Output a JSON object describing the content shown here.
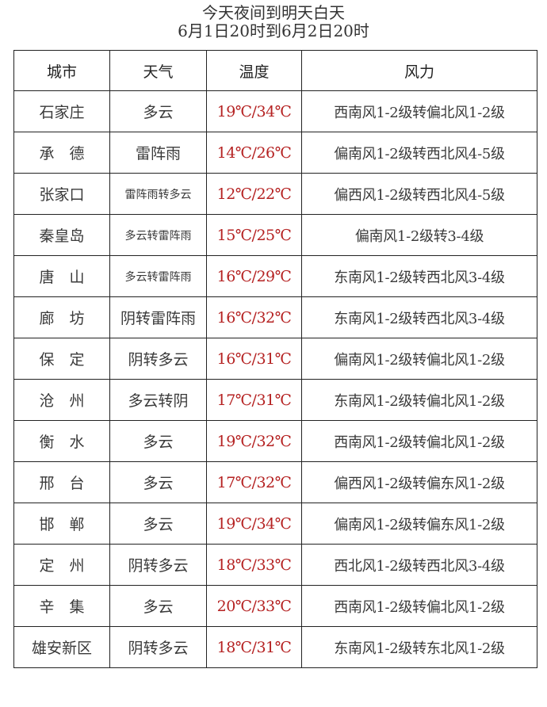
{
  "title_line1": "今天夜间到明天白天",
  "title_line2": "6月1日20时到6月2日20时",
  "headers": [
    "城市",
    "天气",
    "温度",
    "风力"
  ],
  "temp_color": "#b52222",
  "rows": [
    {
      "city": "石家庄",
      "weather": "多云",
      "temp": "19℃/34℃",
      "wind": "西南风1-2级转偏北风1-2级"
    },
    {
      "city": "承　德",
      "weather": "雷阵雨",
      "temp": "14℃/26℃",
      "wind": "偏南风1-2级转西北风4-5级"
    },
    {
      "city": "张家口",
      "weather": "雷阵雨转多云",
      "temp": "12℃/22℃",
      "wind": "偏西风1-2级转西北风4-5级"
    },
    {
      "city": "秦皇岛",
      "weather": "多云转雷阵雨",
      "temp": "15℃/25℃",
      "wind": "偏南风1-2级转3-4级"
    },
    {
      "city": "唐　山",
      "weather": "多云转雷阵雨",
      "temp": "16℃/29℃",
      "wind": "东南风1-2级转西北风3-4级"
    },
    {
      "city": "廊　坊",
      "weather": "阴转雷阵雨",
      "temp": "16℃/32℃",
      "wind": "东南风1-2级转西北风3-4级"
    },
    {
      "city": "保　定",
      "weather": "阴转多云",
      "temp": "16℃/31℃",
      "wind": "偏南风1-2级转偏北风1-2级"
    },
    {
      "city": "沧　州",
      "weather": "多云转阴",
      "temp": "17℃/31℃",
      "wind": "东南风1-2级转偏北风1-2级"
    },
    {
      "city": "衡　水",
      "weather": "多云",
      "temp": "19℃/32℃",
      "wind": "西南风1-2级转偏北风1-2级"
    },
    {
      "city": "邢　台",
      "weather": "多云",
      "temp": "17℃/32℃",
      "wind": "偏西风1-2级转偏东风1-2级"
    },
    {
      "city": "邯　郸",
      "weather": "多云",
      "temp": "19℃/34℃",
      "wind": "偏南风1-2级转偏东风1-2级"
    },
    {
      "city": "定　州",
      "weather": "阴转多云",
      "temp": "18℃/33℃",
      "wind": "西北风1-2级转西北风3-4级"
    },
    {
      "city": "辛　集",
      "weather": "多云",
      "temp": "20℃/33℃",
      "wind": "西南风1-2级转偏北风1-2级"
    },
    {
      "city": "雄安新区",
      "weather": "阴转多云",
      "temp": "18℃/31℃",
      "wind": "东南风1-2级转东北风1-2级"
    }
  ]
}
